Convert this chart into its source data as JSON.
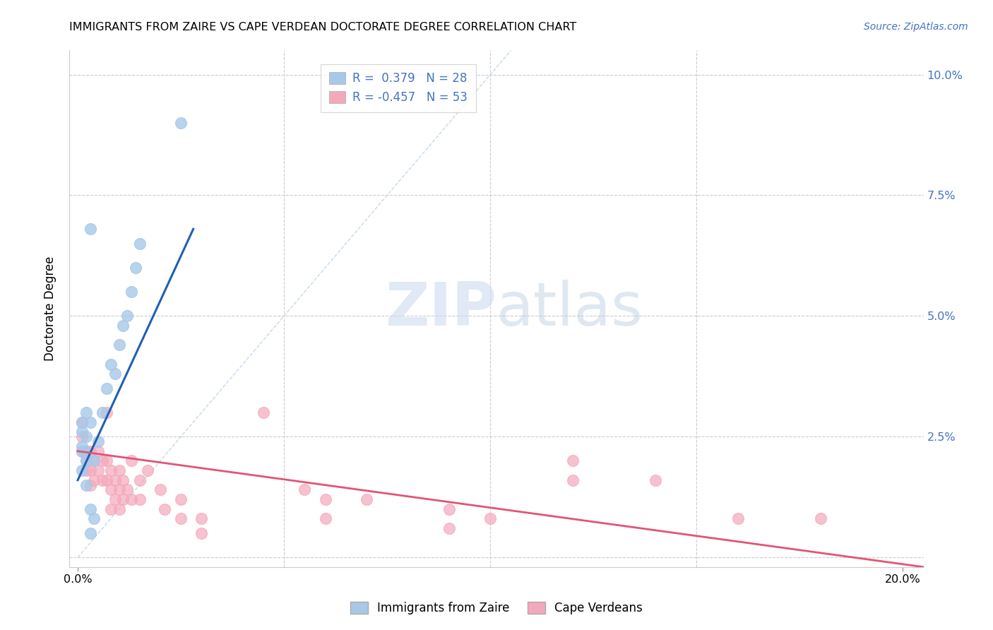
{
  "title": "IMMIGRANTS FROM ZAIRE VS CAPE VERDEAN DOCTORATE DEGREE CORRELATION CHART",
  "source": "Source: ZipAtlas.com",
  "ylabel": "Doctorate Degree",
  "ylabel_ticks": [
    "",
    "2.5%",
    "5.0%",
    "7.5%",
    "10.0%"
  ],
  "ylabel_tick_vals": [
    0.0,
    0.025,
    0.05,
    0.075,
    0.1
  ],
  "xlabel_ticks": [
    "0.0%",
    "20.0%"
  ],
  "xlabel_tick_vals": [
    0.0,
    0.2
  ],
  "xlim": [
    -0.002,
    0.205
  ],
  "ylim": [
    -0.002,
    0.105
  ],
  "legend_r_blue": "0.379",
  "legend_n_blue": "28",
  "legend_r_pink": "-0.457",
  "legend_n_pink": "53",
  "blue_scatter_color": "#a8c8e8",
  "pink_scatter_color": "#f4a8bc",
  "blue_line_color": "#2060b0",
  "pink_line_color": "#e05575",
  "diag_line_color": "#b8cfe8",
  "watermark_zip": "ZIP",
  "watermark_atlas": "atlas",
  "blue_scatter": [
    [
      0.001,
      0.022
    ],
    [
      0.002,
      0.025
    ],
    [
      0.003,
      0.028
    ],
    [
      0.004,
      0.02
    ],
    [
      0.005,
      0.024
    ],
    [
      0.006,
      0.03
    ],
    [
      0.007,
      0.035
    ],
    [
      0.008,
      0.04
    ],
    [
      0.009,
      0.038
    ],
    [
      0.01,
      0.044
    ],
    [
      0.011,
      0.048
    ],
    [
      0.012,
      0.05
    ],
    [
      0.013,
      0.055
    ],
    [
      0.014,
      0.06
    ],
    [
      0.015,
      0.065
    ],
    [
      0.003,
      0.068
    ],
    [
      0.001,
      0.018
    ],
    [
      0.002,
      0.015
    ],
    [
      0.003,
      0.01
    ],
    [
      0.004,
      0.008
    ],
    [
      0.001,
      0.026
    ],
    [
      0.002,
      0.022
    ],
    [
      0.002,
      0.02
    ],
    [
      0.001,
      0.023
    ],
    [
      0.001,
      0.028
    ],
    [
      0.002,
      0.03
    ],
    [
      0.003,
      0.005
    ],
    [
      0.025,
      0.09
    ]
  ],
  "pink_scatter": [
    [
      0.001,
      0.025
    ],
    [
      0.001,
      0.022
    ],
    [
      0.001,
      0.028
    ],
    [
      0.002,
      0.02
    ],
    [
      0.002,
      0.022
    ],
    [
      0.002,
      0.018
    ],
    [
      0.003,
      0.022
    ],
    [
      0.003,
      0.018
    ],
    [
      0.003,
      0.015
    ],
    [
      0.004,
      0.02
    ],
    [
      0.004,
      0.016
    ],
    [
      0.005,
      0.022
    ],
    [
      0.005,
      0.018
    ],
    [
      0.006,
      0.02
    ],
    [
      0.006,
      0.016
    ],
    [
      0.007,
      0.02
    ],
    [
      0.007,
      0.016
    ],
    [
      0.007,
      0.03
    ],
    [
      0.008,
      0.018
    ],
    [
      0.008,
      0.014
    ],
    [
      0.008,
      0.01
    ],
    [
      0.009,
      0.016
    ],
    [
      0.009,
      0.012
    ],
    [
      0.01,
      0.018
    ],
    [
      0.01,
      0.014
    ],
    [
      0.01,
      0.01
    ],
    [
      0.011,
      0.016
    ],
    [
      0.011,
      0.012
    ],
    [
      0.012,
      0.014
    ],
    [
      0.013,
      0.02
    ],
    [
      0.013,
      0.012
    ],
    [
      0.015,
      0.016
    ],
    [
      0.015,
      0.012
    ],
    [
      0.017,
      0.018
    ],
    [
      0.02,
      0.014
    ],
    [
      0.021,
      0.01
    ],
    [
      0.025,
      0.012
    ],
    [
      0.025,
      0.008
    ],
    [
      0.03,
      0.008
    ],
    [
      0.03,
      0.005
    ],
    [
      0.045,
      0.03
    ],
    [
      0.055,
      0.014
    ],
    [
      0.06,
      0.012
    ],
    [
      0.06,
      0.008
    ],
    [
      0.07,
      0.012
    ],
    [
      0.09,
      0.01
    ],
    [
      0.09,
      0.006
    ],
    [
      0.1,
      0.008
    ],
    [
      0.12,
      0.02
    ],
    [
      0.12,
      0.016
    ],
    [
      0.14,
      0.016
    ],
    [
      0.16,
      0.008
    ],
    [
      0.18,
      0.008
    ]
  ],
  "blue_line_x": [
    0.0,
    0.028
  ],
  "blue_line_y": [
    0.016,
    0.068
  ],
  "pink_line_x": [
    0.0,
    0.205
  ],
  "pink_line_y": [
    0.022,
    -0.002
  ],
  "diag_line_x": [
    0.0,
    0.105
  ],
  "diag_line_y": [
    0.0,
    0.105
  ]
}
